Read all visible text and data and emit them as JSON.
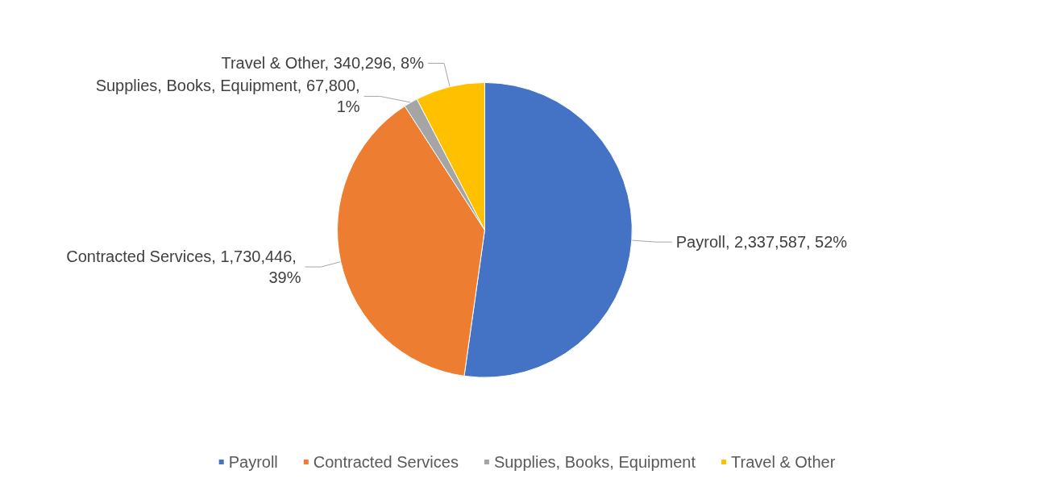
{
  "chart_data": {
    "type": "pie",
    "categories": [
      "Payroll",
      "Contracted Services",
      "Supplies, Books, Equipment",
      "Travel & Other"
    ],
    "values": [
      2337587,
      1730446,
      67800,
      340296
    ],
    "colors": [
      "#4472c4",
      "#ed7d31",
      "#a5a5a5",
      "#ffc000"
    ],
    "value_labels": [
      "Payroll, 2,337,587, 52%",
      "Contracted Services, 1,730,446, 39%",
      "Supplies, Books, Equipment, 67,800, 1%",
      "Travel & Other, 340,296, 8%"
    ],
    "legend": "bottom"
  }
}
